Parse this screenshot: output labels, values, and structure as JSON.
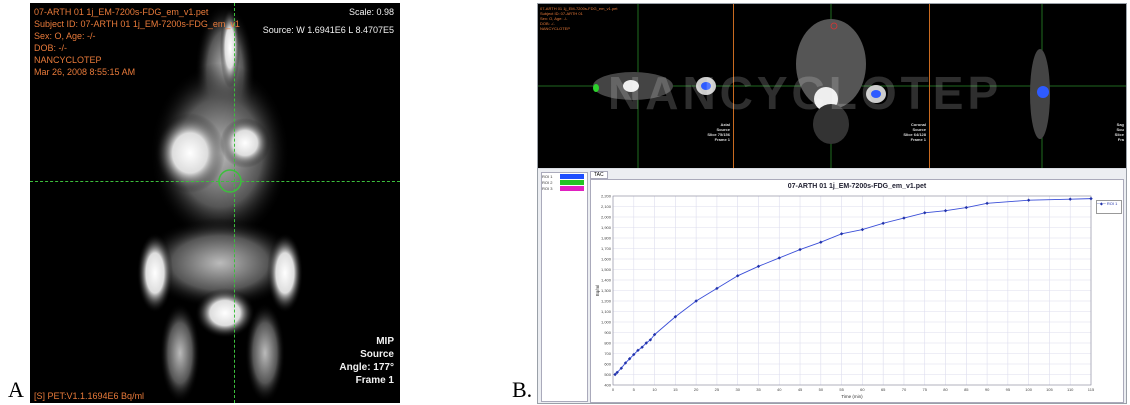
{
  "labels": {
    "a": "A",
    "b": "B."
  },
  "panel_a": {
    "tl": [
      "07-ARTH 01 1j_EM-7200s-FDG_em_v1.pet",
      "Subject ID: 07-ARTH 01 1j_EM-7200s-FDG_em_v1",
      "Sex: O, Age: -/-",
      "DOB: -/-",
      "NANCYCLOTEP",
      "Mar 26, 2008 8:55:15 AM"
    ],
    "scale": "Scale: 0.98",
    "source": "Source: W 1.6941E6 L 8.4707E5",
    "br": [
      "MIP",
      "Source",
      "Angle: 177°",
      "Frame 1"
    ],
    "bl": "[S] PET:V1.1.1694E6 Bq/ml"
  },
  "panel_b": {
    "watermark": "NANCYCLOTEP",
    "views": [
      {
        "br": [
          "Axial",
          "Source",
          "Slice 75/156",
          "Frame 1"
        ]
      },
      {
        "br": [
          "Coronal",
          "Source",
          "Slice 64/128",
          "Frame 1"
        ]
      },
      {
        "br": [
          "Sag",
          "Sou",
          "Slice",
          "Fra"
        ]
      }
    ],
    "roi": [
      {
        "name": "ROI 1",
        "color": "#1f4fff"
      },
      {
        "name": "ROI 2",
        "color": "#22c422"
      },
      {
        "name": "ROI 3",
        "color": "#e020c0"
      }
    ],
    "tab": "TAC",
    "legend": "ROI 1",
    "chart_data": {
      "type": "line",
      "title": "07-ARTH 01 1j_EM-7200s-FDG_em_v1.pet",
      "xlabel": "Time (min)",
      "ylabel": "Bq/ml",
      "x": [
        0.5,
        1,
        2,
        3,
        4,
        5,
        6,
        7,
        8,
        9,
        10,
        15,
        20,
        25,
        30,
        35,
        40,
        45,
        50,
        55,
        60,
        65,
        70,
        75,
        80,
        85,
        90,
        100,
        110,
        115
      ],
      "y": [
        500,
        520,
        560,
        610,
        650,
        690,
        730,
        760,
        800,
        830,
        880,
        1050,
        1200,
        1320,
        1440,
        1530,
        1610,
        1690,
        1760,
        1840,
        1880,
        1940,
        1990,
        2040,
        2060,
        2090,
        2130,
        2160,
        2170,
        2175
      ],
      "xlim": [
        0,
        115
      ],
      "ylim": [
        400,
        2200
      ],
      "grid": true,
      "legend": "top-right"
    }
  }
}
